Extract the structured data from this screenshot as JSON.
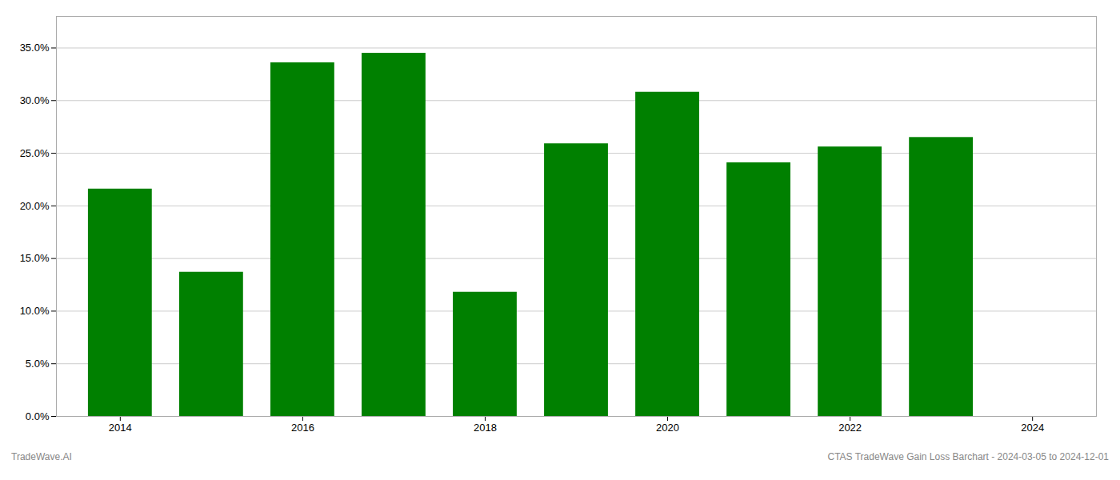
{
  "chart_data": {
    "type": "bar",
    "x": [
      2014,
      2015,
      2016,
      2017,
      2018,
      2019,
      2020,
      2021,
      2022,
      2023
    ],
    "values": [
      0.216,
      0.137,
      0.336,
      0.345,
      0.118,
      0.259,
      0.308,
      0.241,
      0.256,
      0.265
    ],
    "color": "#008000",
    "xlim": [
      2013.3,
      2024.7
    ],
    "xticks": [
      2014,
      2016,
      2018,
      2020,
      2022,
      2024
    ],
    "ylim": [
      0,
      0.38
    ],
    "yticks": [
      {
        "value": 0.0,
        "label": "0.0%"
      },
      {
        "value": 0.05,
        "label": "5.0%"
      },
      {
        "value": 0.1,
        "label": "10.0%"
      },
      {
        "value": 0.15,
        "label": "15.0%"
      },
      {
        "value": 0.2,
        "label": "20.0%"
      },
      {
        "value": 0.25,
        "label": "25.0%"
      },
      {
        "value": 0.3,
        "label": "30.0%"
      },
      {
        "value": 0.35,
        "label": "35.0%"
      }
    ],
    "grid": true,
    "annotations": [
      "TradeWave.AI",
      "CTAS TradeWave Gain Loss Barchart - 2024-03-05 to 2024-12-01"
    ]
  }
}
